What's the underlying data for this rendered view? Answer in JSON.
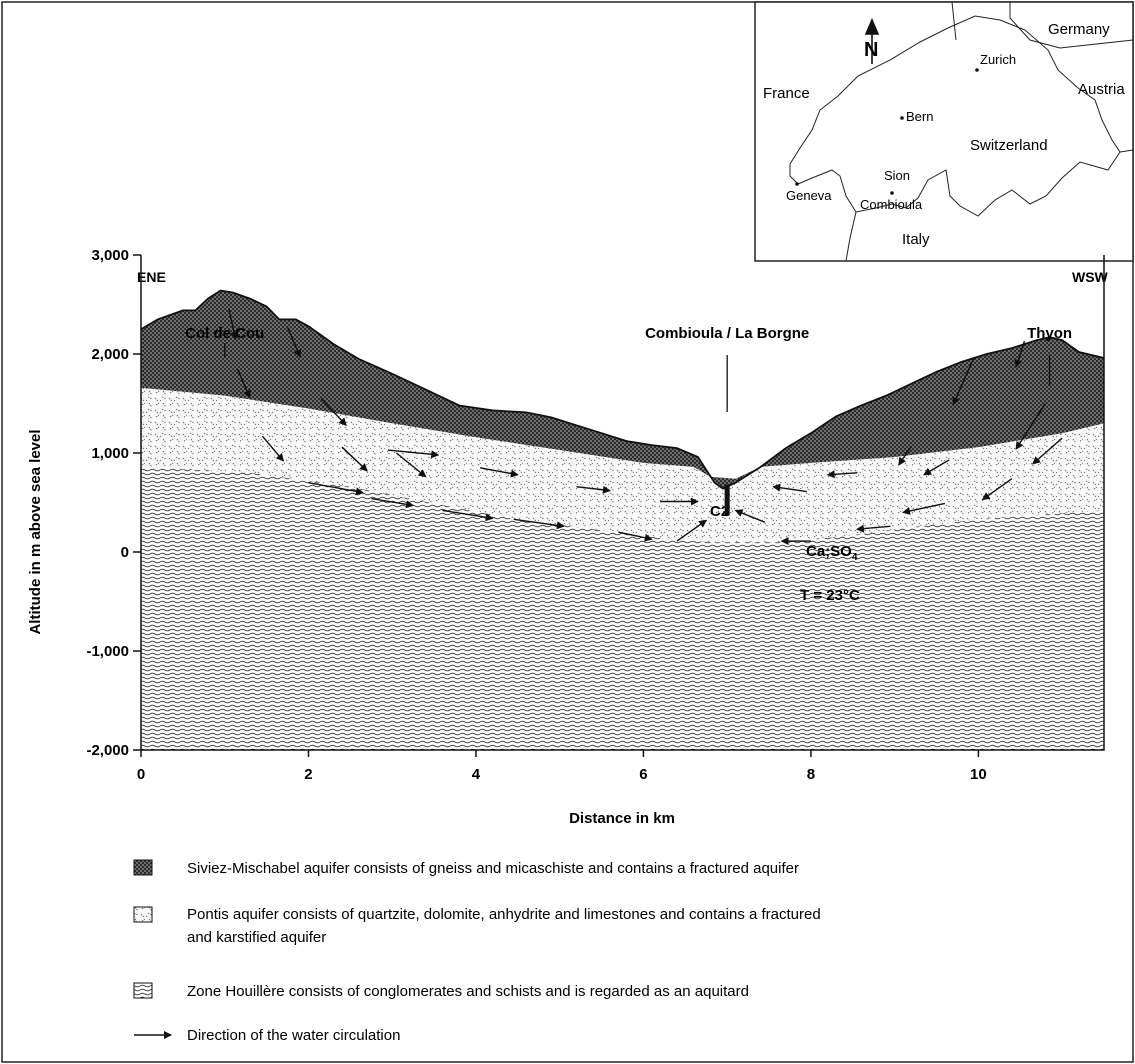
{
  "inset_map": {
    "north_label": "N",
    "countries": [
      "Germany",
      "France",
      "Austria",
      "Switzerland",
      "Italy"
    ],
    "cities": [
      "Zurich",
      "Bern",
      "Sion",
      "Geneva",
      "Combioula"
    ]
  },
  "section": {
    "orientation_left": "ENE",
    "orientation_right": "WSW",
    "sites": [
      {
        "name": "Col de Cou",
        "km": 1.0
      },
      {
        "name": "Combioula / La Borgne",
        "km": 7.0
      },
      {
        "name": "Thyon",
        "km": 10.85
      }
    ],
    "borehole": {
      "label": "C2",
      "km": 7.0
    },
    "chemistry_label": "Ca;SO",
    "chemistry_subscript": "4",
    "temperature_label": "T = 23°C",
    "x_axis": {
      "label": "Distance in km",
      "range": [
        0,
        11.5
      ],
      "ticks": [
        0,
        2,
        4,
        6,
        8,
        10
      ],
      "tick_labels": [
        "0",
        "2",
        "4",
        "6",
        "8",
        "10"
      ]
    },
    "y_axis": {
      "label": "Altitude in m above sea level",
      "range": [
        -2000,
        3000
      ],
      "ticks": [
        3000,
        2000,
        1000,
        0,
        -1000,
        -2000
      ],
      "tick_labels": [
        "3,000",
        "2,000",
        "1,000",
        "0",
        "-1,000",
        "-2,000"
      ]
    },
    "surface_profile": [
      [
        0,
        2250
      ],
      [
        0.2,
        2350
      ],
      [
        0.5,
        2440
      ],
      [
        0.65,
        2440
      ],
      [
        0.8,
        2560
      ],
      [
        0.95,
        2640
      ],
      [
        1.1,
        2620
      ],
      [
        1.3,
        2560
      ],
      [
        1.5,
        2480
      ],
      [
        1.65,
        2350
      ],
      [
        1.85,
        2350
      ],
      [
        2.0,
        2280
      ],
      [
        2.3,
        2100
      ],
      [
        2.6,
        1950
      ],
      [
        3.0,
        1800
      ],
      [
        3.4,
        1640
      ],
      [
        3.8,
        1480
      ],
      [
        4.2,
        1430
      ],
      [
        4.6,
        1410
      ],
      [
        4.9,
        1360
      ],
      [
        5.2,
        1280
      ],
      [
        5.5,
        1200
      ],
      [
        5.8,
        1120
      ],
      [
        6.1,
        1080
      ],
      [
        6.4,
        1050
      ],
      [
        6.65,
        960
      ],
      [
        6.85,
        700
      ],
      [
        6.95,
        640
      ],
      [
        7.1,
        700
      ],
      [
        7.4,
        860
      ],
      [
        7.7,
        1050
      ],
      [
        8.0,
        1200
      ],
      [
        8.3,
        1370
      ],
      [
        8.6,
        1480
      ],
      [
        8.9,
        1580
      ],
      [
        9.2,
        1700
      ],
      [
        9.5,
        1820
      ],
      [
        9.8,
        1920
      ],
      [
        10.1,
        2000
      ],
      [
        10.4,
        2060
      ],
      [
        10.7,
        2140
      ],
      [
        10.85,
        2170
      ],
      [
        11.0,
        2140
      ],
      [
        11.2,
        2020
      ],
      [
        11.5,
        1960
      ]
    ],
    "siviez_base": [
      [
        0,
        1660
      ],
      [
        1,
        1580
      ],
      [
        2,
        1450
      ],
      [
        3,
        1300
      ],
      [
        4,
        1160
      ],
      [
        5,
        1030
      ],
      [
        6,
        900
      ],
      [
        6.6,
        860
      ],
      [
        6.8,
        760
      ],
      [
        7.1,
        740
      ],
      [
        7.4,
        860
      ],
      [
        8,
        900
      ],
      [
        9,
        960
      ],
      [
        10,
        1060
      ],
      [
        11,
        1200
      ],
      [
        11.5,
        1300
      ]
    ],
    "pontis_base": [
      [
        0,
        860
      ],
      [
        1.3,
        800
      ],
      [
        2.5,
        660
      ],
      [
        3.5,
        490
      ],
      [
        4.5,
        330
      ],
      [
        5.5,
        220
      ],
      [
        6.3,
        130
      ],
      [
        6.8,
        100
      ],
      [
        7.6,
        100
      ],
      [
        8.4,
        160
      ],
      [
        9.2,
        250
      ],
      [
        10,
        330
      ],
      [
        10.8,
        380
      ],
      [
        11.5,
        420
      ]
    ],
    "flow_arrows": [
      [
        1.05,
        2450,
        1.13,
        2150
      ],
      [
        1.75,
        2270,
        1.9,
        1970
      ],
      [
        1.15,
        1850,
        1.3,
        1560
      ],
      [
        2.15,
        1550,
        2.45,
        1280
      ],
      [
        1.45,
        1170,
        1.7,
        920
      ],
      [
        2.4,
        1060,
        2.7,
        820
      ],
      [
        3.05,
        1000,
        3.4,
        760
      ],
      [
        2.95,
        1030,
        3.55,
        980
      ],
      [
        2.0,
        700,
        2.65,
        600
      ],
      [
        2.75,
        540,
        3.25,
        470
      ],
      [
        4.05,
        850,
        4.5,
        780
      ],
      [
        3.6,
        420,
        4.2,
        340
      ],
      [
        4.45,
        330,
        5.05,
        260
      ],
      [
        5.2,
        660,
        5.6,
        620
      ],
      [
        5.7,
        200,
        6.1,
        130
      ],
      [
        6.2,
        510,
        6.65,
        510
      ],
      [
        6.4,
        110,
        6.75,
        320
      ],
      [
        7.45,
        300,
        7.1,
        420
      ],
      [
        7.95,
        610,
        7.55,
        660
      ],
      [
        8.55,
        800,
        8.2,
        780
      ],
      [
        8.0,
        110,
        7.65,
        110
      ],
      [
        9.2,
        1070,
        9.05,
        880
      ],
      [
        9.65,
        930,
        9.35,
        780
      ],
      [
        9.95,
        1970,
        9.7,
        1490
      ],
      [
        10.55,
        2130,
        10.45,
        1870
      ],
      [
        10.8,
        1500,
        10.45,
        1040
      ],
      [
        11.0,
        1150,
        10.65,
        890
      ],
      [
        10.4,
        740,
        10.05,
        530
      ],
      [
        9.6,
        490,
        9.1,
        400
      ],
      [
        8.95,
        260,
        8.55,
        230
      ]
    ]
  },
  "legend": [
    {
      "pattern": "gneiss",
      "text": "Siviez-Mischabel aquifer consists of gneiss and micaschiste and contains a fractured aquifer"
    },
    {
      "pattern": "limestone",
      "text": "Pontis aquifer consists of quartzite, dolomite, anhydrite and limestones and contains a fractured",
      "text2": "and karstified aquifer"
    },
    {
      "pattern": "schist",
      "text": "Zone Houillère consists of conglomerates and schists and is regarded as an aquitard"
    },
    {
      "pattern": "arrow",
      "text": "Direction of the water circulation"
    }
  ]
}
